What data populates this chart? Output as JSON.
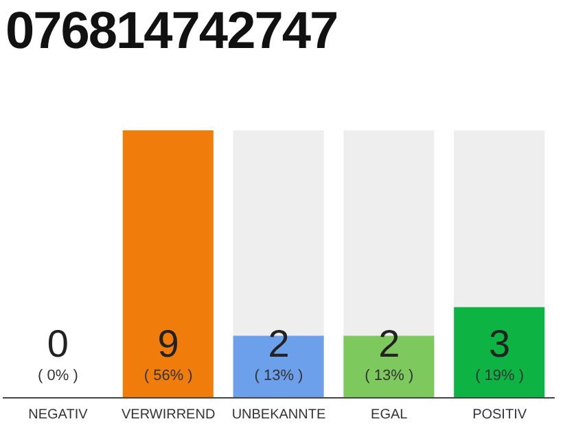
{
  "chart_data": {
    "type": "bar",
    "title": "076814742747",
    "categories": [
      "NEGATIV",
      "VERWIRREND",
      "UNBEKANNTE",
      "EGAL",
      "POSITIV"
    ],
    "values": [
      0,
      56,
      13,
      13,
      19
    ],
    "colors": [
      "#b0b0b0",
      "#f07c0b",
      "#6da0ea",
      "#7dc95e",
      "#0db443"
    ],
    "value_labels": [
      "( 0% )",
      "( 56% )",
      "( 13% )",
      "( 13% )",
      "( 19% )"
    ],
    "annotations": [
      "0",
      "9",
      "2",
      "2",
      "3"
    ],
    "tick_labels": "x",
    "grid": false
  }
}
